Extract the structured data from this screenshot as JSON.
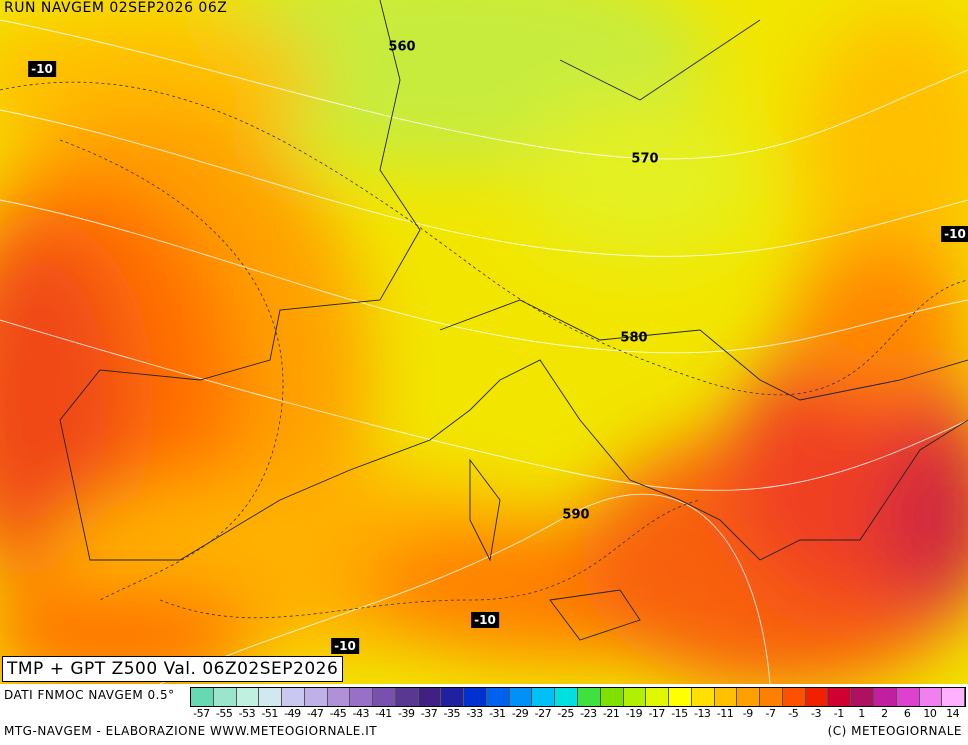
{
  "header": {
    "run": "RUN NAVGEM 02SEP2026 06Z"
  },
  "map": {
    "contour_labels": [
      "560",
      "570",
      "580",
      "590"
    ],
    "temp_labels": [
      "-10",
      "-10",
      "-10",
      "-10"
    ]
  },
  "title": "TMP + GPT Z500 Val. 06Z02SEP2026",
  "legend": {
    "source": "DATI FNMOC NAVGEM 0.5°",
    "labels": [
      "-57",
      "-55",
      "-53",
      "-51",
      "-49",
      "-47",
      "-45",
      "-43",
      "-41",
      "-39",
      "-37",
      "-35",
      "-33",
      "-31",
      "-29",
      "-27",
      "-25",
      "-23",
      "-21",
      "-19",
      "-17",
      "-15",
      "-13",
      "-11",
      "-9",
      "-7",
      "-5",
      "-3",
      "-1",
      "1",
      "2",
      "6",
      "10",
      "14"
    ],
    "colors": [
      "#66d9b3",
      "#99e6cc",
      "#c0f0e0",
      "#d0e8f0",
      "#c8c8f0",
      "#c0b0e8",
      "#b090d8",
      "#9870c8",
      "#7850b0",
      "#583890",
      "#402080",
      "#2020a0",
      "#0030d0",
      "#0060f0",
      "#0090f8",
      "#00c0f8",
      "#00e0e0",
      "#40e040",
      "#80e000",
      "#b0f000",
      "#e0f800",
      "#ffff00",
      "#ffe000",
      "#ffc000",
      "#ffa000",
      "#ff8000",
      "#ff5000",
      "#f02000",
      "#d00030",
      "#b01060",
      "#c020a0",
      "#e040d0",
      "#f080f0",
      "#ffb0ff"
    ]
  },
  "footer": {
    "left": "MTG-NAVGEM - ELABORAZIONE WWW.METEOGIORNALE.IT",
    "right": "(C) METEOGIORNALE"
  }
}
